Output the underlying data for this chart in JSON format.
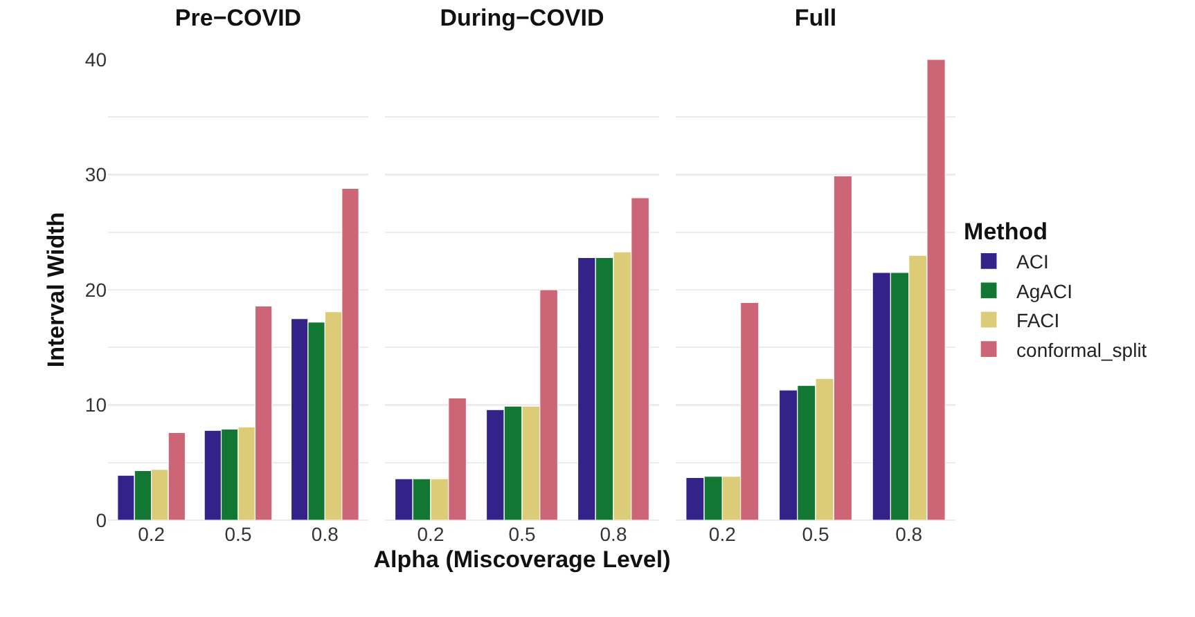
{
  "chart_data": [
    {
      "type": "bar",
      "title": "Pre−COVID",
      "ylabel": "Interval Width",
      "categories": [
        "0.2",
        "0.5",
        "0.8"
      ],
      "ylim": [
        0,
        40
      ],
      "yticks": [
        0,
        {
          "value": 5,
          "label": null
        },
        10,
        {
          "value": 15,
          "label": null
        },
        20,
        {
          "value": 25,
          "label": null
        },
        30,
        {
          "value": 35,
          "label": null
        },
        40
      ],
      "grid": "y",
      "series": [
        {
          "color": "#332288",
          "values": [
            3.9,
            7.8,
            17.5
          ]
        },
        {
          "color": "#117733",
          "values": [
            4.3,
            7.9,
            17.2
          ]
        },
        {
          "color": "#ddcc77",
          "values": [
            4.4,
            8.1,
            18.1
          ]
        },
        {
          "color": "#cc6677",
          "values": [
            7.6,
            18.6,
            28.8
          ]
        }
      ]
    },
    {
      "type": "bar",
      "title": "During−COVID",
      "xlabel": "Alpha (Miscoverage Level)",
      "categories": [
        "0.2",
        "0.5",
        "0.8"
      ],
      "ylim": [
        0,
        40
      ],
      "yticks": [
        0,
        {
          "value": 5,
          "label": null
        },
        10,
        {
          "value": 15,
          "label": null
        },
        20,
        {
          "value": 25,
          "label": null
        },
        30,
        {
          "value": 35,
          "label": null
        },
        40
      ],
      "grid": "y",
      "tick_labels": "x",
      "series": [
        {
          "color": "#332288",
          "values": [
            3.6,
            9.6,
            22.8
          ]
        },
        {
          "color": "#117733",
          "values": [
            3.6,
            9.9,
            22.8
          ]
        },
        {
          "color": "#ddcc77",
          "values": [
            3.6,
            9.9,
            23.3
          ]
        },
        {
          "color": "#cc6677",
          "values": [
            10.6,
            20.0,
            28.0
          ]
        }
      ]
    },
    {
      "type": "bar",
      "title": "Full",
      "legend_title": "Method",
      "categories": [
        "0.2",
        "0.5",
        "0.8"
      ],
      "ylim": [
        0,
        40
      ],
      "yticks": [
        0,
        {
          "value": 5,
          "label": null
        },
        10,
        {
          "value": 15,
          "label": null
        },
        20,
        {
          "value": 25,
          "label": null
        },
        30,
        {
          "value": 35,
          "label": null
        },
        40
      ],
      "grid": "y",
      "legend": "right",
      "tick_labels": "x",
      "series": [
        {
          "name": "ACI",
          "color": "#332288",
          "values": [
            3.7,
            11.3,
            21.5
          ]
        },
        {
          "name": "AgACI",
          "color": "#117733",
          "values": [
            3.8,
            11.7,
            21.5
          ]
        },
        {
          "name": "FACI",
          "color": "#ddcc77",
          "values": [
            3.8,
            12.3,
            23.0
          ]
        },
        {
          "name": "conformal_split",
          "color": "#cc6677",
          "values": [
            18.9,
            29.9,
            40.0
          ]
        }
      ]
    }
  ]
}
